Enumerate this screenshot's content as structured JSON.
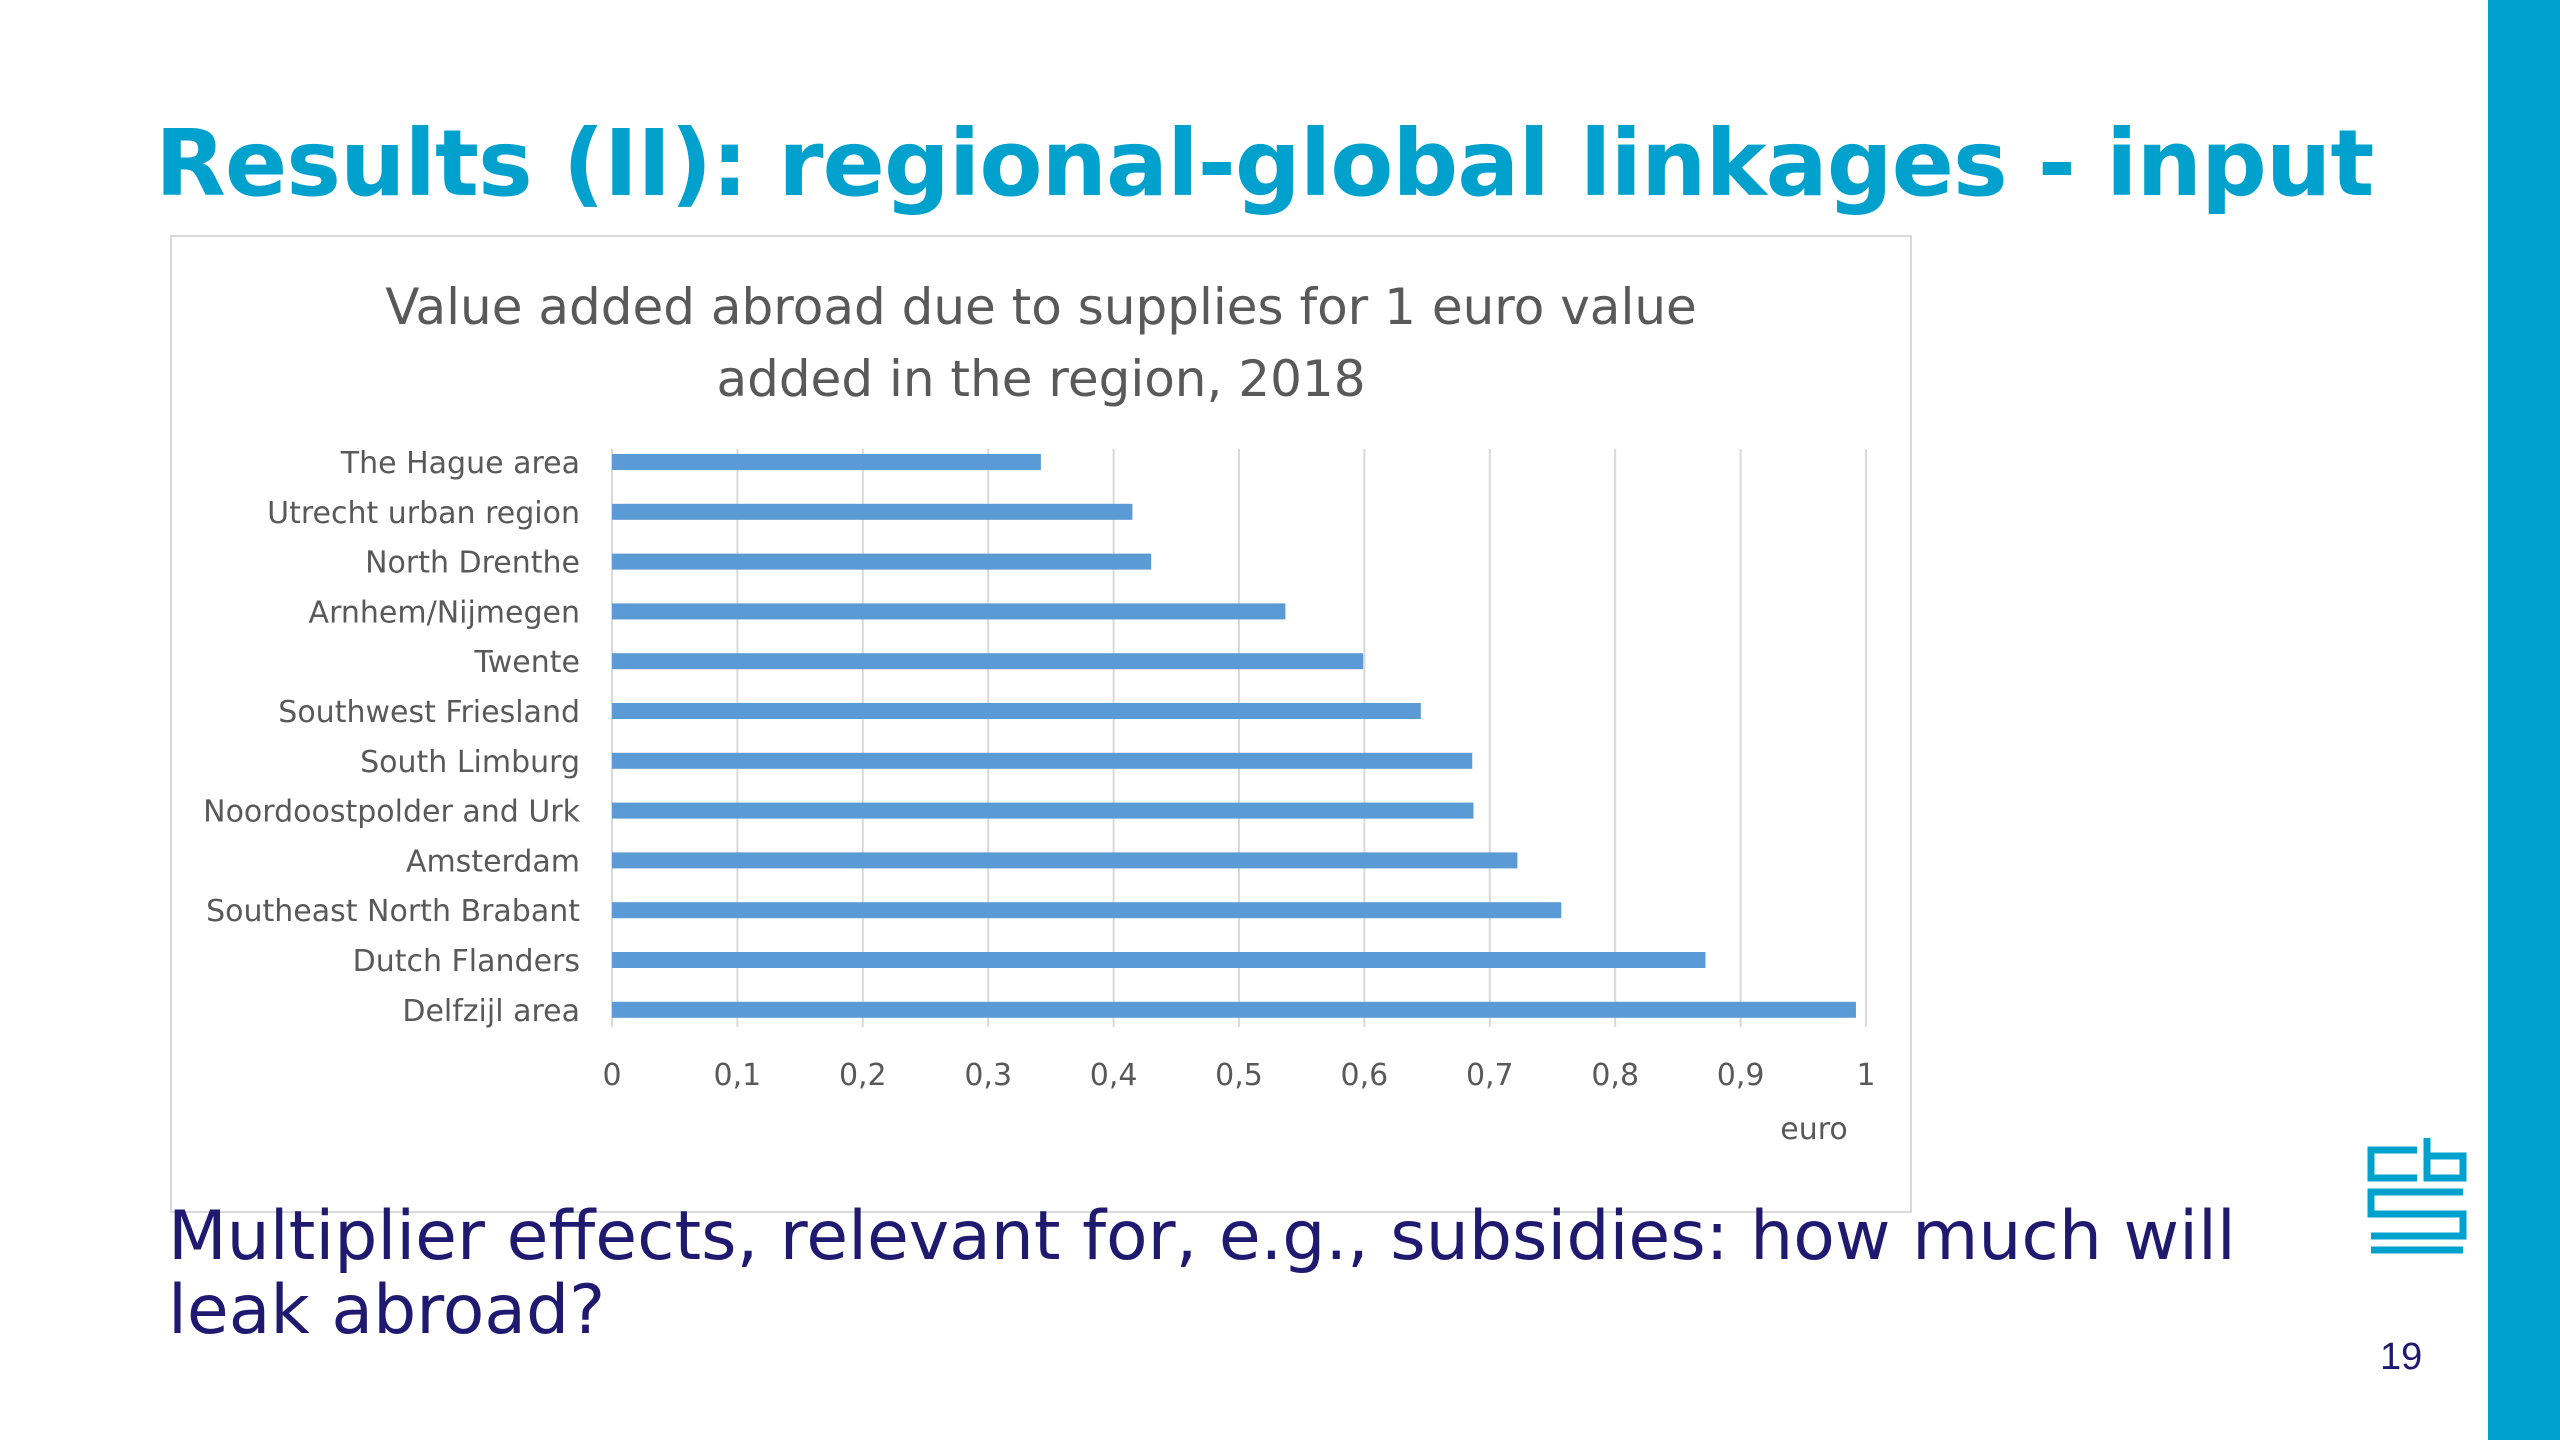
{
  "slide": {
    "title": "Results (II): regional-global linkages - input",
    "body_text": "Multiplier effects, relevant for, e.g., subsidies: how much will leak abroad?",
    "page_number": "19",
    "logo_icon": "cbs-logo-icon",
    "colors": {
      "accent": "#00a1cd",
      "body_text": "#1f1a70",
      "bar": "#5b9bd5"
    }
  },
  "chart_data": {
    "type": "bar",
    "orientation": "horizontal",
    "title_lines": [
      "Value added abroad due to supplies for 1 euro value",
      "added in the region, 2018"
    ],
    "xlabel": "euro",
    "ylabel": "",
    "xlim": [
      0,
      1
    ],
    "x_ticks": [
      "0",
      "0,1",
      "0,2",
      "0,3",
      "0,4",
      "0,5",
      "0,6",
      "0,7",
      "0,8",
      "0,9",
      "1"
    ],
    "grid": "vertical",
    "categories": [
      "The Hague area",
      "Utrecht urban region",
      "North Drenthe",
      "Arnhem/Nijmegen",
      "Twente",
      "Southwest Friesland",
      "South Limburg",
      "Noordoostpolder and Urk",
      "Amsterdam",
      "Southeast North Brabant",
      "Dutch Flanders",
      "Delfzijl area"
    ],
    "values": [
      0.342,
      0.415,
      0.43,
      0.537,
      0.599,
      0.645,
      0.686,
      0.687,
      0.722,
      0.757,
      0.872,
      0.992
    ]
  }
}
